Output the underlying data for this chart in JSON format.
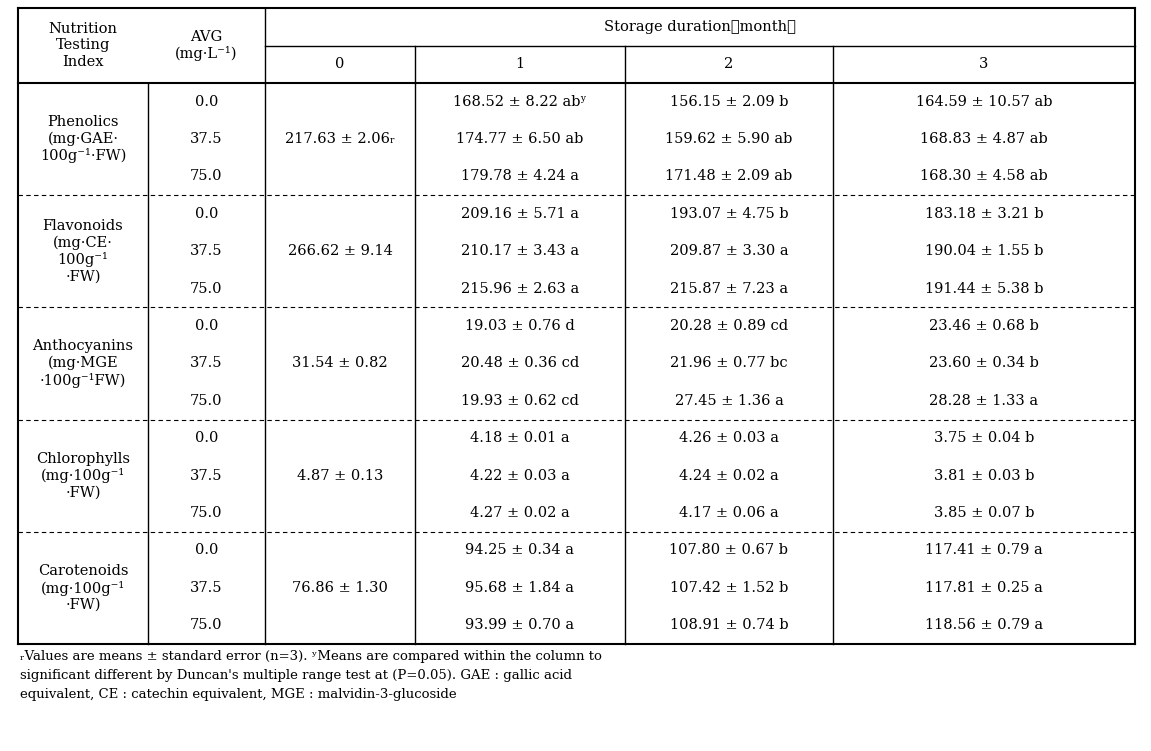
{
  "sections": [
    {
      "name": "Phenolics\n(mg·GAE·\n100g⁻¹·FW)",
      "avg_values": [
        "0.0",
        "37.5",
        "75.0"
      ],
      "col0": [
        "",
        "217.63 ± 2.06ᵣ",
        ""
      ],
      "col1": [
        "168.52 ± 8.22 abʸ",
        "174.77 ± 6.50 ab",
        "179.78 ± 4.24 a"
      ],
      "col2": [
        "156.15 ± 2.09 b",
        "159.62 ± 5.90 ab",
        "171.48 ± 2.09 ab"
      ],
      "col3": [
        "164.59 ± 10.57 ab",
        "168.83 ± 4.87 ab",
        "168.30 ± 4.58 ab"
      ]
    },
    {
      "name": "Flavonoids\n(mg·CE·\n100g⁻¹\n·FW)",
      "avg_values": [
        "0.0",
        "37.5",
        "75.0"
      ],
      "col0": [
        "",
        "266.62 ± 9.14",
        ""
      ],
      "col1": [
        "209.16 ± 5.71 a",
        "210.17 ± 3.43 a",
        "215.96 ± 2.63 a"
      ],
      "col2": [
        "193.07 ± 4.75 b",
        "209.87 ± 3.30 a",
        "215.87 ± 7.23 a"
      ],
      "col3": [
        "183.18 ± 3.21 b",
        "190.04 ± 1.55 b",
        "191.44 ± 5.38 b"
      ]
    },
    {
      "name": "Anthocyanins\n(mg·MGE\n·100g⁻¹FW)",
      "avg_values": [
        "0.0",
        "37.5",
        "75.0"
      ],
      "col0": [
        "",
        "31.54 ± 0.82",
        ""
      ],
      "col1": [
        "19.03 ± 0.76 d",
        "20.48 ± 0.36 cd",
        "19.93 ± 0.62 cd"
      ],
      "col2": [
        "20.28 ± 0.89 cd",
        "21.96 ± 0.77 bc",
        "27.45 ± 1.36 a"
      ],
      "col3": [
        "23.46 ± 0.68 b",
        "23.60 ± 0.34 b",
        "28.28 ± 1.33 a"
      ]
    },
    {
      "name": "Chlorophylls\n(mg·100g⁻¹\n·FW)",
      "avg_values": [
        "0.0",
        "37.5",
        "75.0"
      ],
      "col0": [
        "",
        "4.87 ± 0.13",
        ""
      ],
      "col1": [
        "4.18 ± 0.01 a",
        "4.22 ± 0.03 a",
        "4.27 ± 0.02 a"
      ],
      "col2": [
        "4.26 ± 0.03 a",
        "4.24 ± 0.02 a",
        "4.17 ± 0.06 a"
      ],
      "col3": [
        "3.75 ± 0.04 b",
        "3.81 ± 0.03 b",
        "3.85 ± 0.07 b"
      ]
    },
    {
      "name": "Carotenoids\n(mg·100g⁻¹\n·FW)",
      "avg_values": [
        "0.0",
        "37.5",
        "75.0"
      ],
      "col0": [
        "",
        "76.86 ± 1.30",
        ""
      ],
      "col1": [
        "94.25 ± 0.34 a",
        "95.68 ± 1.84 a",
        "93.99 ± 0.70 a"
      ],
      "col2": [
        "107.80 ± 0.67 b",
        "107.42 ± 1.52 b",
        "108.91 ± 0.74 b"
      ],
      "col3": [
        "117.41 ± 0.79 a",
        "117.81 ± 0.25 a",
        "118.56 ± 0.79 a"
      ]
    }
  ],
  "header_col0": "Nutrition\nTesting\nIndex",
  "header_col1": "AVG\n(mg·L⁻¹)",
  "header_storage": "Storage duration（month）",
  "header_sub": [
    "0",
    "1",
    "2",
    "3"
  ],
  "footnote_z": "ᵣValues are means ± standard error (n=3). ʸMeans are compared within the column to",
  "footnote_lines": [
    "ᵣValues are means ± standard error (n=3). ʸMeans are compared within the column to",
    "significant different by Duncan's multiple range test at (P=0.05). GAE : gallic acid",
    "equivalent, CE : catechin equivalent, MGE : malvidin-3-glucoside"
  ],
  "bg_color": "#ffffff",
  "text_color": "#000000",
  "font_size": 10.5,
  "footnote_size": 9.5
}
